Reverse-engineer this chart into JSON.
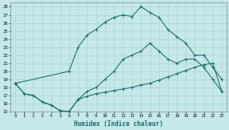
{
  "xlabel": "Humidex (Indice chaleur)",
  "bg_color": "#c5e8e8",
  "line_color": "#1a6b6b",
  "grid_color": "#a8d0d0",
  "line1_x": [
    0,
    1,
    2,
    3,
    4,
    5,
    6,
    7,
    8,
    9,
    10,
    11,
    12,
    13,
    14,
    15,
    16,
    17,
    18,
    19,
    20,
    21,
    22,
    23
  ],
  "line1_y": [
    18.5,
    17.2,
    17.0,
    16.2,
    15.8,
    15.1,
    15.0,
    16.5,
    17.5,
    18.0,
    19.0,
    20.0,
    21.5,
    22.0,
    22.5,
    23.5,
    22.5,
    21.5,
    21.0,
    21.5,
    21.5,
    20.5,
    19.0,
    17.5
  ],
  "line2_x": [
    0,
    6,
    7,
    8,
    9,
    10,
    11,
    12,
    13,
    14,
    15,
    16,
    17,
    18,
    19,
    20,
    21,
    22,
    23
  ],
  "line2_y": [
    18.5,
    20.0,
    23.0,
    24.5,
    25.2,
    26.1,
    26.7,
    27.0,
    26.8,
    28.0,
    27.3,
    26.7,
    25.2,
    24.3,
    23.5,
    22.0,
    22.0,
    20.5,
    19.0
  ],
  "line3_x": [
    0,
    1,
    2,
    3,
    4,
    5,
    6,
    7,
    8,
    9,
    10,
    11,
    12,
    13,
    14,
    15,
    16,
    17,
    18,
    19,
    20,
    21,
    22,
    23
  ],
  "line3_y": [
    18.5,
    17.2,
    17.0,
    16.2,
    15.8,
    15.1,
    15.0,
    16.5,
    16.9,
    17.2,
    17.4,
    17.6,
    17.8,
    18.0,
    18.3,
    18.5,
    18.9,
    19.3,
    19.7,
    20.1,
    20.5,
    20.8,
    21.0,
    17.5
  ],
  "ylim": [
    15,
    28.5
  ],
  "xlim": [
    -0.5,
    23.5
  ],
  "yticks": [
    15,
    16,
    17,
    18,
    19,
    20,
    21,
    22,
    23,
    24,
    25,
    26,
    27,
    28
  ],
  "xticks": [
    0,
    1,
    2,
    3,
    4,
    5,
    6,
    7,
    8,
    9,
    10,
    11,
    12,
    13,
    14,
    15,
    16,
    17,
    18,
    19,
    20,
    21,
    22,
    23
  ]
}
